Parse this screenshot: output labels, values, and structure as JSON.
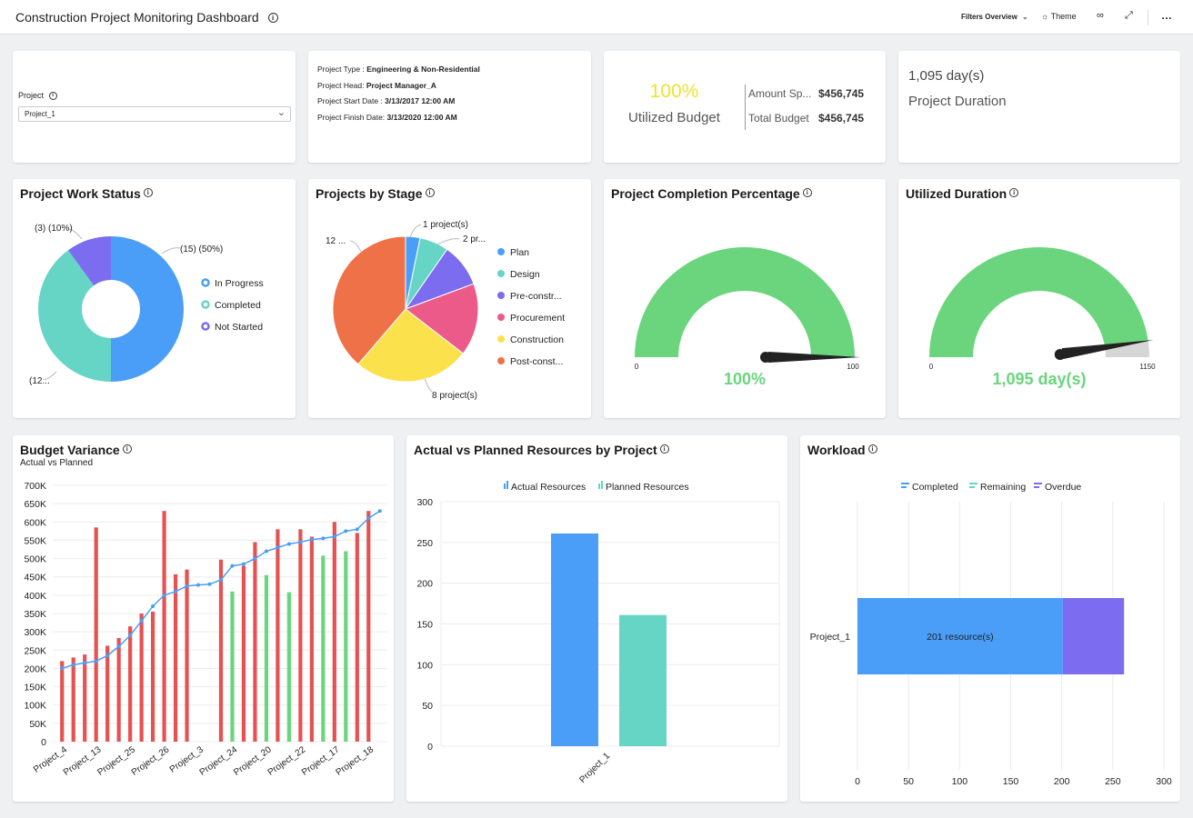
{
  "header": {
    "title": "Construction Project Monitoring Dashboard",
    "filters_label": "Filters Overview",
    "theme_label": "Theme"
  },
  "project_filter": {
    "label": "Project",
    "value": "Project_1"
  },
  "project_info": {
    "type_label": "Project Type : ",
    "type_value": "Engineering & Non-Residential",
    "head_label": "Project Head: ",
    "head_value": "Project Manager_A",
    "start_label": "Project Start Date : ",
    "start_value": "3/13/2017 12:00 AM",
    "finish_label": "Project Finish Date: ",
    "finish_value": "3/13/2020 12:00 AM"
  },
  "budget_kpi": {
    "percent": "100%",
    "label": "Utilized Budget",
    "spent_label": "Amount Sp...",
    "spent_value": "$456,745",
    "total_label": "Total Budget",
    "total_value": "$456,745"
  },
  "duration_kpi": {
    "value": "1,095 day(s)",
    "label": "Project Duration"
  },
  "colors": {
    "blue": "#4a9ef8",
    "teal": "#67d5c6",
    "purple": "#7b6cf0",
    "pink": "#ec5a8a",
    "yellow": "#fbe14b",
    "orange": "#ef7148",
    "green": "#6ad57c",
    "red": "#e55252"
  },
  "work_status": {
    "title": "Project Work Status",
    "legend": [
      "In Progress",
      "Completed",
      "Not Started"
    ],
    "labels": [
      "(15) (50%)",
      "(12...",
      "(3) (10%)"
    ]
  },
  "stage": {
    "title": "Projects by Stage",
    "legend": [
      "Plan",
      "Design",
      "Pre-constr...",
      "Procurement",
      "Construction",
      "Post-const..."
    ],
    "labels": [
      "1 project(s)",
      "2 pr...",
      "8 project(s)",
      "12 ..."
    ]
  },
  "completion": {
    "title": "Project Completion Percentage",
    "min": "0",
    "max": "100",
    "value_text": "100%",
    "value": 100
  },
  "utilized_duration": {
    "title": "Utilized Duration",
    "min": "0",
    "max": "1150",
    "value_text": "1,095 day(s)",
    "value": 1095,
    "maximum": 1150
  },
  "budget_variance": {
    "title": "Budget Variance",
    "subtitle": "Actual vs Planned",
    "x_labels": [
      "Project_4",
      "Project_13",
      "Project_25",
      "Project_26",
      "Project_3",
      "Project_24",
      "Project_20",
      "Project_22",
      "Project_17",
      "Project_18"
    ],
    "y_labels": [
      "0",
      "50K",
      "100K",
      "150K",
      "200K",
      "250K",
      "300K",
      "350K",
      "400K",
      "450K",
      "500K",
      "550K",
      "600K",
      "650K",
      "700K"
    ]
  },
  "resources": {
    "title": "Actual vs Planned Resources by Project",
    "legend": [
      "Actual Resources",
      "Planned Resources"
    ],
    "y_labels": [
      "0",
      "50",
      "100",
      "150",
      "200",
      "250",
      "300"
    ],
    "x_label": "Project_1"
  },
  "workload": {
    "title": "Workload",
    "legend": [
      "Completed",
      "Remaining",
      "Overdue"
    ],
    "category": "Project_1",
    "bar_label": "201 resource(s)",
    "x_labels": [
      "0",
      "50",
      "100",
      "150",
      "200",
      "250",
      "300"
    ]
  },
  "chart_data": [
    {
      "type": "pie",
      "title": "Project Work Status",
      "categories": [
        "In Progress",
        "Completed",
        "Not Started"
      ],
      "values": [
        15,
        12,
        3
      ]
    },
    {
      "type": "pie",
      "title": "Projects by Stage",
      "categories": [
        "Plan",
        "Design",
        "Pre-constr...",
        "Procurement",
        "Construction",
        "Post-const..."
      ],
      "values": [
        1,
        2,
        3,
        5,
        8,
        12
      ]
    },
    {
      "type": "bar",
      "title": "Budget Variance",
      "subtitle": "Actual vs Planned",
      "categories": [
        "Project_4",
        "",
        "",
        "Project_13",
        "",
        "",
        "Project_25",
        "",
        "",
        "Project_26",
        "",
        "",
        "Project_3",
        "",
        "",
        "Project_24",
        "",
        "",
        "Project_20",
        "",
        "",
        "Project_22",
        "",
        "",
        "Project_17",
        "",
        "",
        "Project_18",
        ""
      ],
      "series": [
        {
          "values": [
            220000,
            230000,
            238000,
            585000,
            262000,
            283000,
            315000,
            350000,
            355000,
            630000,
            457000,
            470000,
            0,
            0,
            497000,
            0,
            480000,
            545000,
            0,
            580000,
            0,
            580000,
            560000,
            0,
            600000,
            0,
            570000,
            630000,
            0
          ]
        },
        {
          "values": [
            0,
            0,
            0,
            0,
            0,
            0,
            0,
            0,
            0,
            0,
            0,
            0,
            0,
            0,
            0,
            410000,
            0,
            0,
            455000,
            0,
            408000,
            0,
            0,
            508000,
            0,
            520000,
            0,
            0,
            0
          ]
        },
        {
          "values": [
            200000,
            210000,
            215000,
            220000,
            235000,
            260000,
            290000,
            330000,
            370000,
            400000,
            410000,
            425000,
            428000,
            430000,
            442000,
            480000,
            485000,
            500000,
            520000,
            530000,
            540000,
            545000,
            552000,
            555000,
            560000,
            575000,
            580000,
            610000,
            630000
          ]
        }
      ],
      "ylim": [
        0,
        700000
      ]
    },
    {
      "type": "bar",
      "title": "Actual vs Planned Resources by Project",
      "categories": [
        "Project_1"
      ],
      "series": [
        {
          "name": "Actual Resources",
          "values": [
            261
          ]
        },
        {
          "name": "Planned Resources",
          "values": [
            161
          ]
        }
      ],
      "ylim": [
        0,
        300
      ]
    },
    {
      "type": "bar",
      "title": "Workload",
      "categories": [
        "Project_1"
      ],
      "series": [
        {
          "name": "Completed",
          "values": [
            201
          ]
        },
        {
          "name": "Remaining",
          "values": [
            0
          ]
        },
        {
          "name": "Overdue",
          "values": [
            60
          ]
        }
      ],
      "xlim": [
        0,
        300
      ]
    }
  ]
}
